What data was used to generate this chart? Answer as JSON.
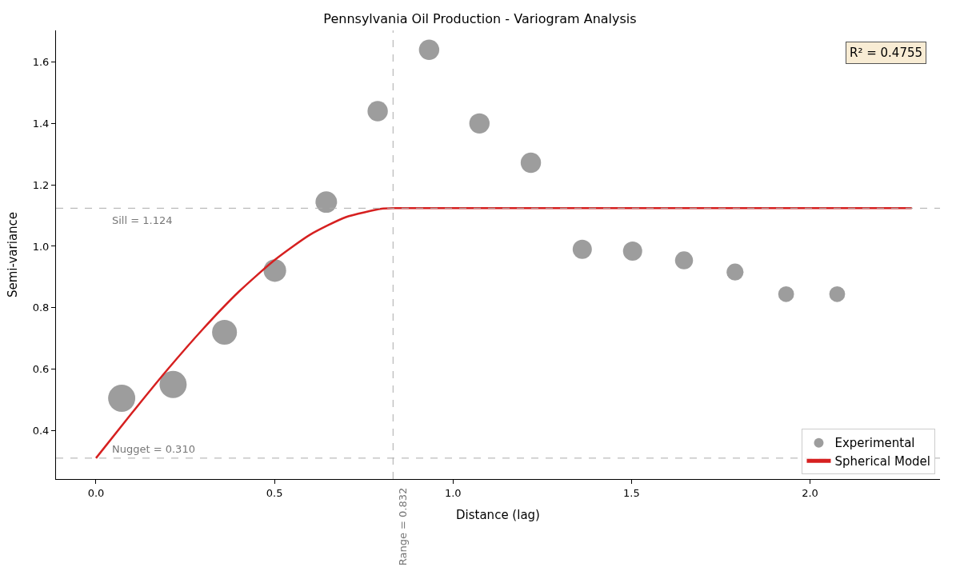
{
  "chart_data": {
    "type": "scatter",
    "title": "Pennsylvania Oil Production - Variogram Analysis",
    "xlabel": "Distance (lag)",
    "ylabel": "Semi-variance",
    "xlim": [
      -0.112,
      2.364
    ],
    "ylim": [
      0.242,
      1.703
    ],
    "xticks": [
      {
        "value": 0,
        "label": "0.0"
      },
      0.5,
      {
        "value": 1,
        "label": "1.0"
      },
      1.5,
      {
        "value": 2,
        "label": "2.0"
      }
    ],
    "yticks": [
      0.4,
      0.6,
      0.8,
      {
        "value": 1,
        "label": "1.0"
      },
      1.2,
      1.4,
      1.6
    ],
    "series": [
      {
        "name": "Experimental",
        "color": "#8c8c8c",
        "x": [
          0.072,
          0.216,
          0.36,
          0.501,
          0.645,
          0.789,
          0.933,
          1.074,
          1.218,
          1.362,
          1.503,
          1.647,
          1.79,
          1.933,
          2.076
        ],
        "values": [
          0.505,
          0.55,
          0.72,
          0.921,
          1.144,
          1.44,
          1.64,
          1.4,
          1.272,
          0.99,
          0.984,
          0.954,
          0.916,
          0.844,
          0.844
        ],
        "sizes": [
          1,
          1,
          0.84,
          0.69,
          0.63,
          0.56,
          0.56,
          0.56,
          0.56,
          0.5,
          0.5,
          0.44,
          0.39,
          0.34,
          0.34
        ],
        "marker": "circle"
      },
      {
        "name": "Spherical Model",
        "type": "line",
        "color": "#d62020",
        "x": [
          0,
          0.1,
          0.2,
          0.3,
          0.4,
          0.5,
          0.6,
          0.7,
          0.8,
          0.832,
          2.285
        ],
        "values": [
          0.31,
          0.456,
          0.598,
          0.731,
          0.852,
          0.955,
          1.038,
          1.095,
          1.122,
          1.124,
          1.124
        ],
        "line_style": "solid",
        "marker": "none"
      }
    ],
    "ref_lines": [
      {
        "axis": "y",
        "value": 1.124,
        "label": "Sill = 1.124",
        "color": "#aaaaaa",
        "line_style": "dashed"
      },
      {
        "axis": "y",
        "value": 0.31,
        "label": "Nugget = 0.310",
        "color": "#aaaaaa",
        "line_style": "dashed"
      },
      {
        "axis": "x",
        "value": 0.832,
        "label": "Range = 0.832",
        "color": "#aaaaaa",
        "line_style": "dashed"
      }
    ],
    "annotations": [
      "R² = 0.4755"
    ],
    "legend": "bottom right"
  }
}
